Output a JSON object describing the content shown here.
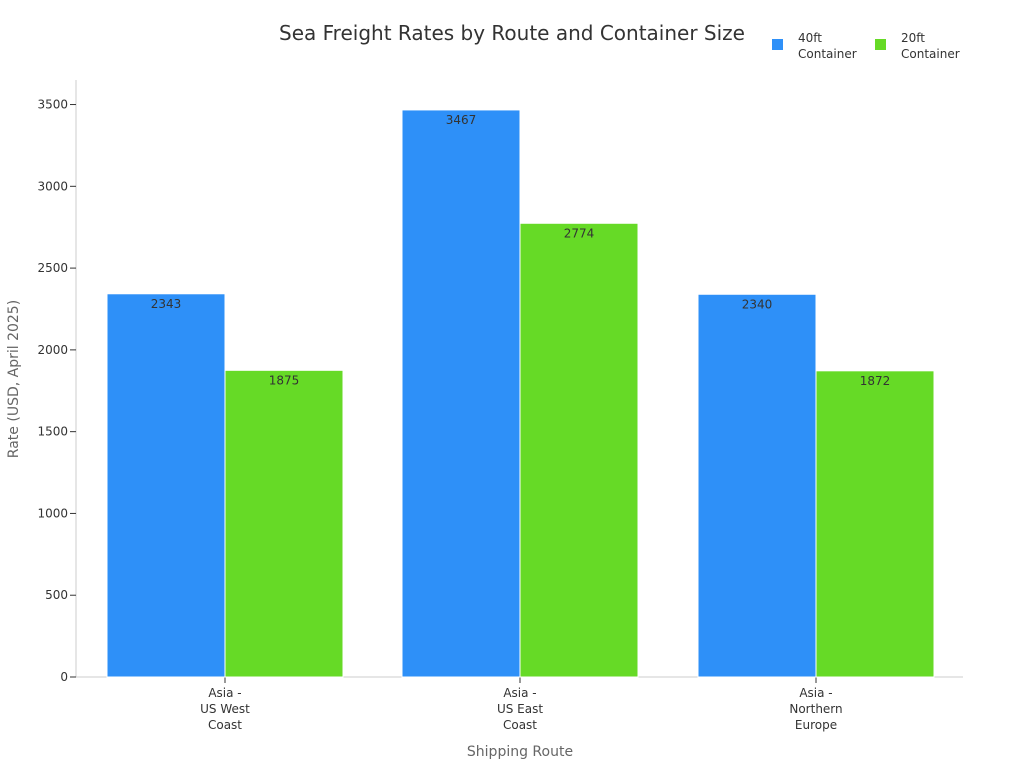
{
  "chart_data": {
    "type": "bar",
    "title": "Sea Freight Rates by Route and Container Size",
    "xlabel": "Shipping Route",
    "ylabel": "Rate (USD, April 2025)",
    "categories": [
      "Asia - US West Coast",
      "Asia - US East Coast",
      "Asia - Northern Europe"
    ],
    "category_lines": [
      [
        "Asia -",
        "US West",
        "Coast"
      ],
      [
        "Asia -",
        "US East",
        "Coast"
      ],
      [
        "Asia -",
        "Northern",
        "Europe"
      ]
    ],
    "series": [
      {
        "name": "40ft Container",
        "legend_lines": [
          "40ft",
          "Container"
        ],
        "color": "#2e90f8",
        "values": [
          2343,
          3467,
          2340
        ]
      },
      {
        "name": "20ft Container",
        "legend_lines": [
          "20ft",
          "Container"
        ],
        "color": "#66da26",
        "values": [
          1875,
          2774,
          1872
        ]
      }
    ],
    "ylim": [
      0,
      3650
    ],
    "yticks": [
      0,
      500,
      1000,
      1500,
      2000,
      2500,
      3000,
      3500
    ],
    "grid": false,
    "legend_position": "top-right",
    "axis_color": "#cccccc"
  }
}
